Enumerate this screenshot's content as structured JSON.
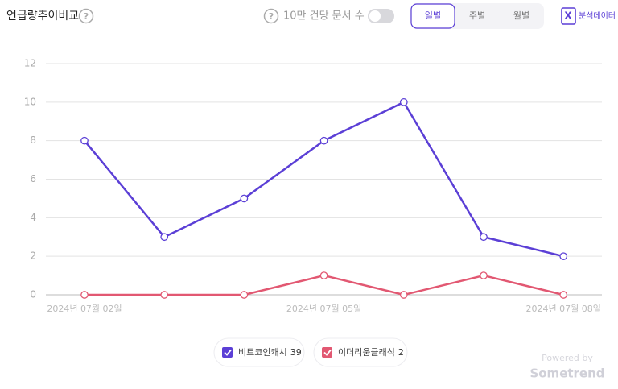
{
  "chart_data": {
    "type": "line",
    "title": "언급량추이비교",
    "categories": [
      "2024년 07월 02일",
      null,
      null,
      "2024년 07월 05일",
      null,
      null,
      "2024년 07월 08일"
    ],
    "series": [
      {
        "name": "비트코인캐시",
        "color": "#5b3fd6",
        "values": [
          8,
          3,
          5,
          8,
          10,
          3,
          2
        ],
        "total": 39
      },
      {
        "name": "이더리움클래식",
        "color": "#e25872",
        "values": [
          0,
          0,
          0,
          1,
          0,
          1,
          0
        ],
        "total": 2
      }
    ],
    "ylim": [
      0,
      12
    ],
    "yticks": [
      0,
      2,
      4,
      6,
      8,
      10,
      12
    ],
    "grid": true
  },
  "ui": {
    "toggle_label": "10만 건당 문서 수",
    "tabs": [
      "일별",
      "주별",
      "월별"
    ],
    "active_tab": 0,
    "export_label": "분석데이터",
    "powered_by": "Powered by",
    "brand": "Sometrend"
  }
}
